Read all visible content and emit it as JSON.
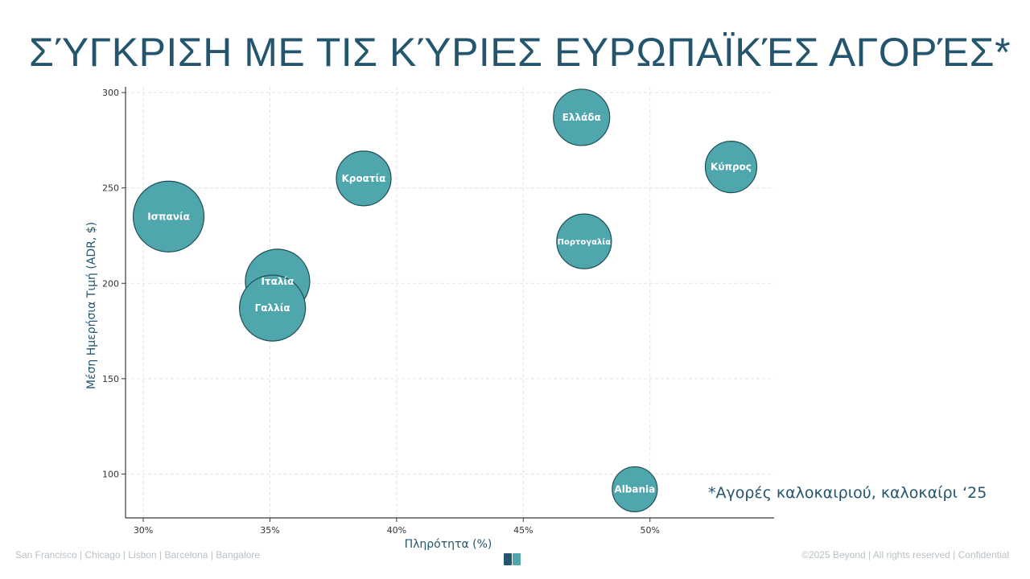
{
  "slide": {
    "title": "ΣΎΓΚΡΙΣΗ ΜΕ ΤΙΣ ΚΎΡΙΕΣ ΕΥΡΩΠΑΪΚΈΣ ΑΓΟΡΈΣ*",
    "note": "*Αγορές καλοκαιριού, καλοκαίρι ‘25",
    "footer_left": "San Francisco | Chicago | Lisbon | Barcelona | Bangalore",
    "footer_right": "©2025 Beyond | All rights reserved | Confidential",
    "logo_icon": "beyond-logo-icon"
  },
  "colors": {
    "bubble_fill": "#4fa6ad",
    "bubble_stroke": "#1e4f57",
    "text_dark": "#23566e",
    "axis": "#3a3a3a",
    "grid": "#e3e3e3"
  },
  "chart_data": {
    "type": "scatter",
    "variant": "bubble",
    "xlabel": "Πληρότητα (%)",
    "ylabel": "Μέση Ημερήσια Τιμή (ADR, $)",
    "xlim": [
      29.3,
      54.9
    ],
    "ylim": [
      77,
      303
    ],
    "xticks": [
      30,
      35,
      40,
      45,
      50
    ],
    "xtick_labels": [
      "30%",
      "35%",
      "40%",
      "45%",
      "50%"
    ],
    "yticks": [
      100,
      150,
      200,
      250,
      300
    ],
    "ytick_labels": [
      "100",
      "150",
      "200",
      "250",
      "300"
    ],
    "grid": true,
    "points": [
      {
        "label": "Ισπανία",
        "x": 31.0,
        "y": 235,
        "size": 44
      },
      {
        "label": "Ιταλία",
        "x": 35.3,
        "y": 201,
        "size": 40
      },
      {
        "label": "Γαλλία",
        "x": 35.1,
        "y": 187,
        "size": 41
      },
      {
        "label": "Κροατία",
        "x": 38.7,
        "y": 255,
        "size": 34
      },
      {
        "label": "Ελλάδα",
        "x": 47.3,
        "y": 287,
        "size": 35
      },
      {
        "label": "Πορτογαλία",
        "x": 47.4,
        "y": 222,
        "size": 34
      },
      {
        "label": "Κύπρος",
        "x": 53.2,
        "y": 261,
        "size": 32
      },
      {
        "label": "Albania",
        "x": 49.4,
        "y": 92,
        "size": 28
      }
    ]
  }
}
